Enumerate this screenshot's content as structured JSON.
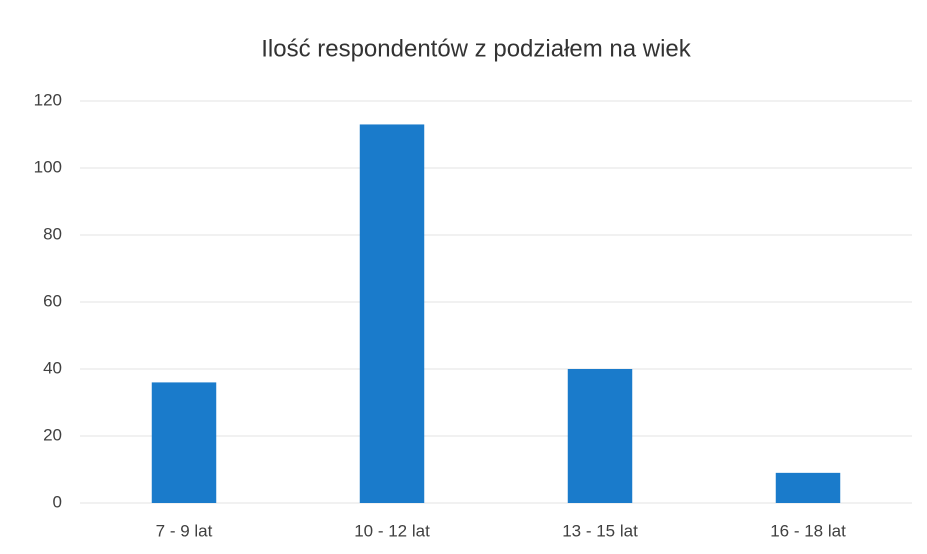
{
  "chart_data": {
    "type": "bar",
    "title": "Ilość respondentów z podziałem na wiek",
    "categories": [
      "7 - 9 lat",
      "10 - 12 lat",
      "13 - 15 lat",
      "16 - 18 lat"
    ],
    "values": [
      36,
      113,
      40,
      9
    ],
    "color": "#1a7bcb",
    "ylim": [
      0,
      120
    ],
    "yticks": [
      0,
      20,
      40,
      60,
      80,
      100,
      120
    ],
    "grid": true
  }
}
